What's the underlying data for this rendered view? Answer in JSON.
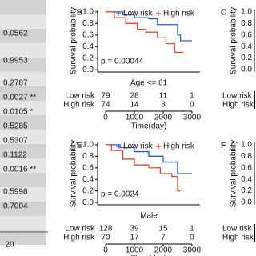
{
  "p_values": [
    "0.0562",
    "0.9953",
    "0.2787",
    "0.0027 **",
    "0.0105 *",
    "0.5285",
    "0.5307",
    "0.1122",
    "0.0016 **",
    "0.5998",
    "0.7004"
  ],
  "axis_label": "20",
  "chart_data": [
    {
      "type": "line",
      "panel": "B",
      "subtitle": "Age <= 61",
      "annotation": "p = 0.00044",
      "y_label": "Survival probability",
      "x_label": "Time(day)",
      "xlim": [
        -280,
        3280
      ],
      "ylim": [
        -0.04,
        1.04
      ],
      "xticks": [
        0,
        1000,
        2000,
        3000
      ],
      "yticks": [
        {
          "value": 0,
          "label": "0.0"
        },
        {
          "value": 0.2,
          "label": "0.2"
        },
        {
          "value": 0.4,
          "label": "0.4"
        },
        {
          "value": 0.6,
          "label": "0.6"
        },
        {
          "value": 0.8,
          "label": "0.8"
        },
        {
          "value": 1,
          "label": "1.0"
        }
      ],
      "series": [
        {
          "name": "Low risk",
          "color": "#2a5cc8",
          "x": [
            0,
            600,
            600,
            1000,
            1000,
            1500,
            1500,
            1800,
            1800,
            2500,
            2500,
            2600,
            2600,
            3000
          ],
          "values": [
            1,
            1,
            0.95,
            0.95,
            0.9,
            0.9,
            0.88,
            0.88,
            0.78,
            0.78,
            0.6,
            0.6,
            0.5,
            0.5
          ]
        },
        {
          "name": "High risk",
          "color": "#e8432c",
          "x": [
            0,
            300,
            300,
            700,
            700,
            1100,
            1100,
            1400,
            1400,
            1800,
            1800,
            2100,
            2100,
            2400,
            2400,
            2700
          ],
          "values": [
            1,
            1,
            0.9,
            0.9,
            0.8,
            0.8,
            0.7,
            0.7,
            0.65,
            0.65,
            0.55,
            0.55,
            0.45,
            0.45,
            0.3,
            0.3
          ]
        }
      ],
      "risk_table": [
        [
          79,
          28,
          11,
          1
        ],
        [
          74,
          14,
          3,
          0
        ]
      ]
    },
    {
      "type": "line",
      "panel": "E",
      "subtitle": "Male",
      "annotation": "p = 0.0024",
      "y_label": "Survival probability",
      "x_label": "Time(day)",
      "xlim": [
        -280,
        3280
      ],
      "ylim": [
        -0.04,
        1.04
      ],
      "xticks": [
        0,
        1000,
        2000,
        3000
      ],
      "yticks": [
        {
          "value": 0,
          "label": "0.0"
        },
        {
          "value": 0.2,
          "label": "0.2"
        },
        {
          "value": 0.4,
          "label": "0.4"
        },
        {
          "value": 0.6,
          "label": "0.6"
        },
        {
          "value": 0.8,
          "label": "0.8"
        },
        {
          "value": 1,
          "label": "1.0"
        }
      ],
      "series": [
        {
          "name": "Low risk",
          "color": "#2a5cc8",
          "x": [
            0,
            500,
            500,
            1000,
            1000,
            1500,
            1500,
            2000,
            2000,
            2500,
            2500,
            3000
          ],
          "values": [
            1,
            1,
            0.95,
            0.95,
            0.88,
            0.88,
            0.8,
            0.8,
            0.7,
            0.7,
            0.5,
            0.5
          ]
        },
        {
          "name": "High risk",
          "color": "#e8432c",
          "x": [
            0,
            200,
            200,
            600,
            600,
            1000,
            1000,
            1500,
            1500,
            1900,
            1900,
            2300,
            2300,
            2500,
            2500,
            2600
          ],
          "values": [
            1,
            1,
            0.9,
            0.9,
            0.75,
            0.75,
            0.65,
            0.65,
            0.6,
            0.6,
            0.5,
            0.5,
            0.45,
            0.45,
            0.2,
            0.2
          ]
        }
      ],
      "risk_table": [
        [
          128,
          39,
          15,
          1
        ],
        [
          70,
          17,
          7,
          0
        ]
      ]
    }
  ],
  "partial_panels": [
    {
      "panel": "C",
      "yticks": [
        "0.0",
        "0.2",
        "0.4",
        "0.6",
        "0.8",
        "1.0"
      ],
      "y_label": "Survival probability",
      "rows": [
        "Low risk",
        "High risk"
      ]
    },
    {
      "panel": "F",
      "yticks": [
        "0.0",
        "0.2",
        "0.4",
        "0.6",
        "0.8",
        "1.0"
      ],
      "y_label": "Survival probability",
      "rows": [
        "Low risk",
        "High risk"
      ]
    }
  ]
}
